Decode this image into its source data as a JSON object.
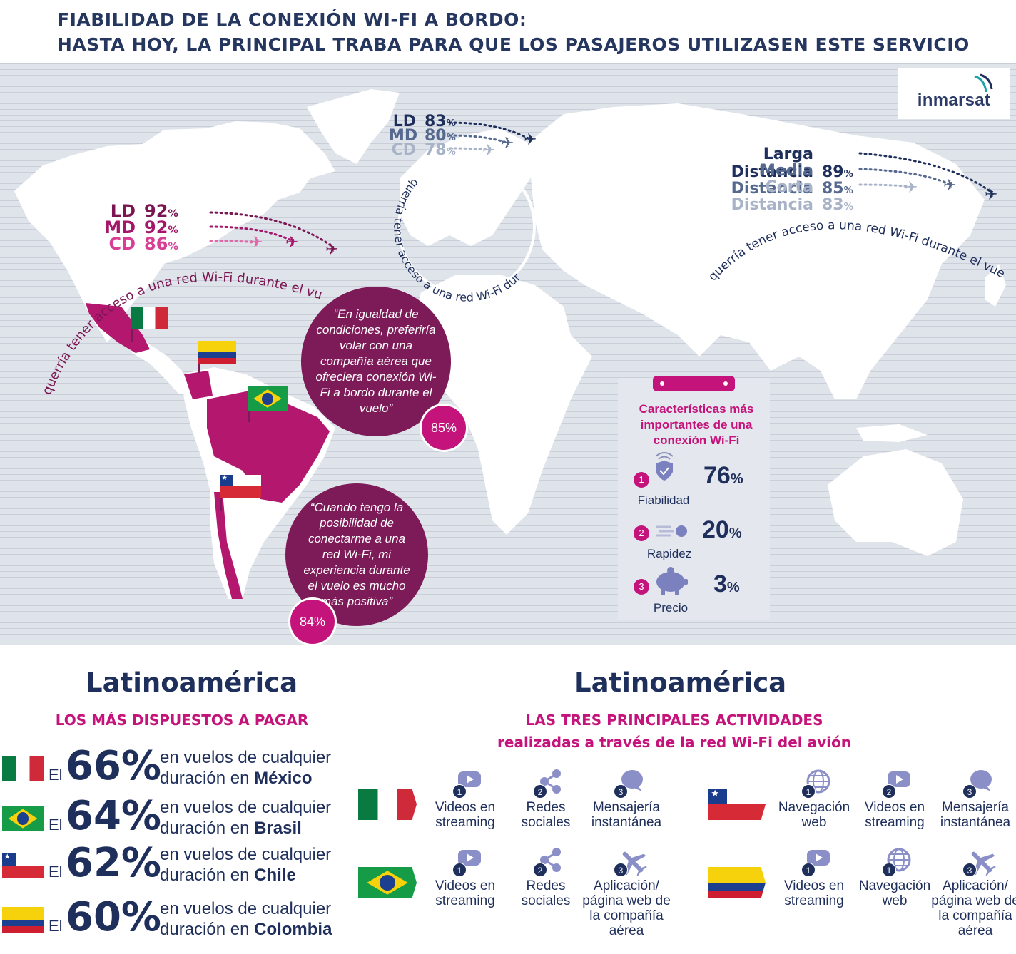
{
  "header": {
    "line1": "FIABILIDAD DE LA CONEXIÓN WI-FI A BORDO:",
    "line2": "HASTA HOY, LA PRINCIPAL TRABA PARA QUE LOS PASAJEROS UTILIZASEN ESTE SERVICIO"
  },
  "logo": {
    "text": "inmarsat",
    "icon": "inmarsat-swoosh-icon"
  },
  "americas": {
    "rows": [
      {
        "label": "LD",
        "value": "92",
        "unit": "%"
      },
      {
        "label": "MD",
        "value": "92",
        "unit": "%"
      },
      {
        "label": "CD",
        "value": "86",
        "unit": "%"
      }
    ],
    "arc_text": "querría tener acceso a una red Wi-Fi durante el vuelo"
  },
  "europe": {
    "rows": [
      {
        "label": "LD",
        "value": "83",
        "unit": "%"
      },
      {
        "label": "MD",
        "value": "80",
        "unit": "%"
      },
      {
        "label": "CD",
        "value": "78",
        "unit": "%"
      }
    ],
    "arc_text": "querría tener acceso a una red Wi-Fi durante el vuelo"
  },
  "asia": {
    "rows": [
      {
        "label": "Larga Distancia",
        "value": "89",
        "unit": "%"
      },
      {
        "label": "Media Distancia",
        "value": "85",
        "unit": "%"
      },
      {
        "label": "Corta Distancia",
        "value": "83",
        "unit": "%"
      }
    ],
    "arc_text": "querría tener acceso a una red Wi-Fi durante el vuelo"
  },
  "quotes": [
    {
      "text": "“En igualdad de condiciones, preferiría volar con una compañía aérea que ofreciera conexión Wi-Fi a bordo durante el vuelo”",
      "pct": "85%"
    },
    {
      "text": "“Cuando tengo la posibilidad de conectarme a una red Wi-Fi, mi experiencia durante el vuelo es mucho más positiva”",
      "pct": "84%"
    }
  ],
  "features": {
    "title": "Características más importantes de una conexión Wi-Fi",
    "items": [
      {
        "num": "1",
        "label": "Fiabilidad",
        "value": "76",
        "unit": "%",
        "icon": "shield-wifi-icon"
      },
      {
        "num": "2",
        "label": "Rapidez",
        "value": "20",
        "unit": "%",
        "icon": "speed-ball-icon"
      },
      {
        "num": "3",
        "label": "Precio",
        "value": "3",
        "unit": "%",
        "icon": "piggy-bank-icon"
      }
    ]
  },
  "left_section": {
    "title": "Latinoamérica",
    "subtitle": "LOS MÁS DISPUESTOS A PAGAR",
    "rows": [
      {
        "flag": "mexico",
        "prefix": "El",
        "pct": "66%",
        "desc": "en vuelos de cualquier duración en",
        "country": "México"
      },
      {
        "flag": "brasil",
        "prefix": "El",
        "pct": "64%",
        "desc": "en vuelos de cualquier duración en",
        "country": "Brasil"
      },
      {
        "flag": "chile",
        "prefix": "El",
        "pct": "62%",
        "desc": "en vuelos de cualquier duración en",
        "country": "Chile"
      },
      {
        "flag": "colombia",
        "prefix": "El",
        "pct": "60%",
        "desc": "en vuelos de cualquier duración en",
        "country": "Colombia"
      }
    ]
  },
  "right_section": {
    "title": "Latinoamérica",
    "subtitle1": "LAS TRES PRINCIPALES ACTIVIDADES",
    "subtitle2": "realizadas a través de la red Wi-Fi del avión",
    "groups": [
      {
        "flag": "mexico",
        "items": [
          {
            "num": "1",
            "label": "Videos en streaming",
            "icon": "video-play-icon"
          },
          {
            "num": "2",
            "label": "Redes sociales",
            "icon": "share-icon"
          },
          {
            "num": "3",
            "label": "Mensajería instantánea",
            "icon": "chat-bubble-icon"
          }
        ]
      },
      {
        "flag": "chile",
        "items": [
          {
            "num": "1",
            "label": "Navegación web",
            "icon": "globe-icon"
          },
          {
            "num": "2",
            "label": "Videos en streaming",
            "icon": "video-play-icon"
          },
          {
            "num": "3",
            "label": "Mensajería instantánea",
            "icon": "chat-bubble-icon"
          }
        ]
      },
      {
        "flag": "brasil",
        "items": [
          {
            "num": "1",
            "label": "Videos en streaming",
            "icon": "video-play-icon"
          },
          {
            "num": "2",
            "label": "Redes sociales",
            "icon": "share-icon"
          },
          {
            "num": "3",
            "label": "Aplicación/ página web de la compañía aérea",
            "icon": "airplane-icon"
          }
        ]
      },
      {
        "flag": "colombia",
        "items": [
          {
            "num": "1",
            "label": "Videos en streaming",
            "icon": "video-play-icon"
          },
          {
            "num": "1",
            "label": "Navegación web",
            "icon": "globe-icon"
          },
          {
            "num": "3",
            "label": "Aplicación/ página web de la compañía aérea",
            "icon": "airplane-icon"
          }
        ]
      }
    ]
  },
  "colors": {
    "navy": "#1f2f5c",
    "magenta": "#c4137a",
    "plum": "#7d1a58",
    "map_bg": "#dfe3ea"
  }
}
